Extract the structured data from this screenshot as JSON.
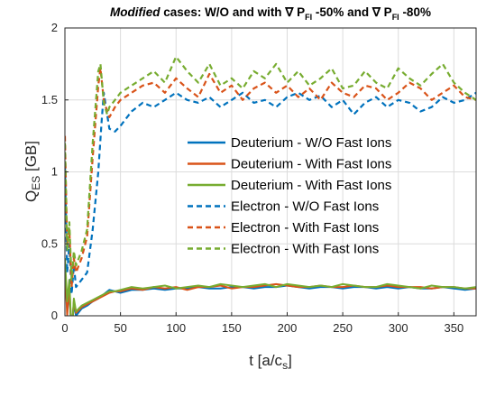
{
  "title": {
    "italic_part": "Modified",
    "text_part1": " cases: W/O and with ",
    "nabla1": "∇",
    "p1": " P",
    "sub1": "FI",
    "text_part2": " -50% and ",
    "nabla2": "∇",
    "p2": " P",
    "sub2": "FI",
    "text_part3": " -80%"
  },
  "axes": {
    "xlabel_main": "t [a/c",
    "xlabel_sub": "s",
    "xlabel_end": "]",
    "ylabel_main": "Q",
    "ylabel_sub": "ES",
    "ylabel_end": " [GB]"
  },
  "chart_data": {
    "type": "line",
    "xlim": [
      0,
      370
    ],
    "ylim": [
      0,
      2
    ],
    "xticks": [
      0,
      50,
      100,
      150,
      200,
      250,
      300,
      350
    ],
    "yticks": [
      0,
      0.5,
      1,
      1.5,
      2
    ],
    "xtick_labels": [
      "0",
      "50",
      "100",
      "150",
      "200",
      "250",
      "300",
      "350"
    ],
    "ytick_labels": [
      "0",
      "0.5",
      "1",
      "1.5",
      "2"
    ],
    "grid": true,
    "legend_position": "center-right",
    "series": [
      {
        "name": "Deuterium - W/O Fast Ions",
        "color": "#0072BD",
        "style": "solid",
        "x": [
          0,
          2,
          4,
          6,
          8,
          10,
          15,
          20,
          25,
          30,
          35,
          40,
          45,
          50,
          60,
          70,
          80,
          90,
          100,
          110,
          120,
          130,
          140,
          150,
          160,
          170,
          180,
          190,
          200,
          210,
          220,
          230,
          240,
          250,
          260,
          270,
          280,
          290,
          300,
          310,
          320,
          330,
          340,
          350,
          360,
          370
        ],
        "y": [
          0.3,
          0.05,
          0.15,
          -0.1,
          0.08,
          0.0,
          0.05,
          0.07,
          0.1,
          0.12,
          0.15,
          0.18,
          0.17,
          0.16,
          0.18,
          0.18,
          0.19,
          0.18,
          0.19,
          0.19,
          0.2,
          0.19,
          0.19,
          0.2,
          0.2,
          0.19,
          0.2,
          0.2,
          0.21,
          0.2,
          0.19,
          0.2,
          0.2,
          0.19,
          0.2,
          0.2,
          0.19,
          0.2,
          0.19,
          0.2,
          0.19,
          0.19,
          0.2,
          0.19,
          0.18,
          0.19
        ]
      },
      {
        "name": "Deuterium - With Fast Ions",
        "color": "#D95319",
        "style": "solid",
        "x": [
          0,
          2,
          4,
          6,
          8,
          10,
          15,
          20,
          25,
          30,
          35,
          40,
          45,
          50,
          60,
          70,
          80,
          90,
          100,
          110,
          120,
          130,
          140,
          150,
          160,
          170,
          180,
          190,
          200,
          210,
          220,
          230,
          240,
          250,
          260,
          270,
          280,
          290,
          300,
          310,
          320,
          330,
          340,
          350,
          360,
          370
        ],
        "y": [
          0.35,
          0.0,
          0.2,
          -0.12,
          0.1,
          0.02,
          0.06,
          0.08,
          0.1,
          0.12,
          0.14,
          0.16,
          0.17,
          0.17,
          0.19,
          0.18,
          0.2,
          0.19,
          0.2,
          0.18,
          0.2,
          0.2,
          0.21,
          0.19,
          0.2,
          0.2,
          0.21,
          0.22,
          0.21,
          0.2,
          0.2,
          0.21,
          0.2,
          0.2,
          0.21,
          0.2,
          0.2,
          0.21,
          0.2,
          0.2,
          0.2,
          0.19,
          0.2,
          0.2,
          0.19,
          0.19
        ]
      },
      {
        "name": "Deuterium - With Fast Ions",
        "color": "#77AC30",
        "style": "solid",
        "x": [
          0,
          2,
          4,
          6,
          8,
          10,
          15,
          20,
          25,
          30,
          35,
          40,
          45,
          50,
          60,
          70,
          80,
          90,
          100,
          110,
          120,
          130,
          140,
          150,
          160,
          170,
          180,
          190,
          200,
          210,
          220,
          230,
          240,
          250,
          260,
          270,
          280,
          290,
          300,
          310,
          320,
          330,
          340,
          350,
          360,
          370
        ],
        "y": [
          0.4,
          0.1,
          0.25,
          -0.15,
          0.12,
          0.03,
          0.07,
          0.09,
          0.11,
          0.13,
          0.15,
          0.17,
          0.17,
          0.18,
          0.2,
          0.19,
          0.2,
          0.21,
          0.19,
          0.2,
          0.21,
          0.2,
          0.22,
          0.21,
          0.2,
          0.21,
          0.22,
          0.2,
          0.22,
          0.21,
          0.2,
          0.21,
          0.2,
          0.22,
          0.21,
          0.2,
          0.2,
          0.22,
          0.21,
          0.2,
          0.19,
          0.21,
          0.2,
          0.2,
          0.19,
          0.2
        ]
      },
      {
        "name": "Electron - W/O Fast Ions",
        "color": "#0072BD",
        "style": "dashed",
        "x": [
          0,
          2,
          4,
          6,
          8,
          10,
          15,
          20,
          25,
          30,
          33,
          35,
          38,
          40,
          45,
          50,
          60,
          70,
          80,
          90,
          100,
          110,
          120,
          130,
          140,
          150,
          160,
          170,
          180,
          190,
          200,
          210,
          220,
          230,
          240,
          250,
          260,
          270,
          280,
          290,
          300,
          310,
          320,
          330,
          340,
          350,
          360,
          370
        ],
        "y": [
          1.05,
          0.3,
          0.5,
          0.15,
          0.35,
          0.2,
          0.25,
          0.3,
          0.6,
          1.0,
          1.35,
          1.55,
          1.4,
          1.3,
          1.28,
          1.32,
          1.42,
          1.48,
          1.45,
          1.5,
          1.55,
          1.5,
          1.48,
          1.52,
          1.45,
          1.5,
          1.55,
          1.48,
          1.5,
          1.45,
          1.52,
          1.55,
          1.5,
          1.53,
          1.45,
          1.5,
          1.4,
          1.48,
          1.52,
          1.45,
          1.5,
          1.48,
          1.42,
          1.45,
          1.52,
          1.48,
          1.5,
          1.55
        ]
      },
      {
        "name": "Electron - With Fast Ions",
        "color": "#D95319",
        "style": "dashed",
        "x": [
          0,
          2,
          4,
          6,
          8,
          10,
          15,
          20,
          25,
          30,
          32,
          35,
          38,
          40,
          45,
          50,
          60,
          70,
          80,
          90,
          100,
          110,
          120,
          130,
          140,
          150,
          160,
          170,
          180,
          190,
          200,
          210,
          220,
          230,
          240,
          250,
          260,
          270,
          280,
          290,
          300,
          310,
          320,
          330,
          340,
          350,
          360,
          370
        ],
        "y": [
          1.25,
          0.5,
          0.6,
          0.2,
          0.4,
          0.3,
          0.4,
          0.55,
          1.1,
          1.6,
          1.72,
          1.5,
          1.42,
          1.38,
          1.45,
          1.5,
          1.55,
          1.6,
          1.62,
          1.55,
          1.65,
          1.58,
          1.52,
          1.68,
          1.55,
          1.6,
          1.5,
          1.58,
          1.62,
          1.55,
          1.6,
          1.52,
          1.58,
          1.5,
          1.62,
          1.55,
          1.52,
          1.6,
          1.58,
          1.5,
          1.55,
          1.62,
          1.58,
          1.5,
          1.55,
          1.6,
          1.52,
          1.5
        ]
      },
      {
        "name": "Electron - With Fast Ions",
        "color": "#77AC30",
        "style": "dashed",
        "x": [
          0,
          2,
          4,
          6,
          8,
          10,
          15,
          20,
          25,
          30,
          32,
          35,
          38,
          40,
          45,
          50,
          60,
          70,
          80,
          90,
          100,
          110,
          120,
          130,
          140,
          150,
          160,
          170,
          180,
          190,
          200,
          210,
          220,
          230,
          240,
          250,
          260,
          270,
          280,
          290,
          300,
          310,
          320,
          330,
          340,
          350,
          360,
          370
        ],
        "y": [
          1.2,
          0.45,
          0.65,
          0.25,
          0.45,
          0.35,
          0.45,
          0.6,
          1.2,
          1.7,
          1.75,
          1.48,
          1.4,
          1.45,
          1.5,
          1.55,
          1.6,
          1.65,
          1.7,
          1.62,
          1.8,
          1.7,
          1.62,
          1.75,
          1.6,
          1.65,
          1.58,
          1.7,
          1.65,
          1.75,
          1.62,
          1.7,
          1.6,
          1.65,
          1.72,
          1.58,
          1.6,
          1.7,
          1.62,
          1.58,
          1.72,
          1.65,
          1.6,
          1.68,
          1.75,
          1.62,
          1.55,
          1.5
        ]
      }
    ]
  }
}
